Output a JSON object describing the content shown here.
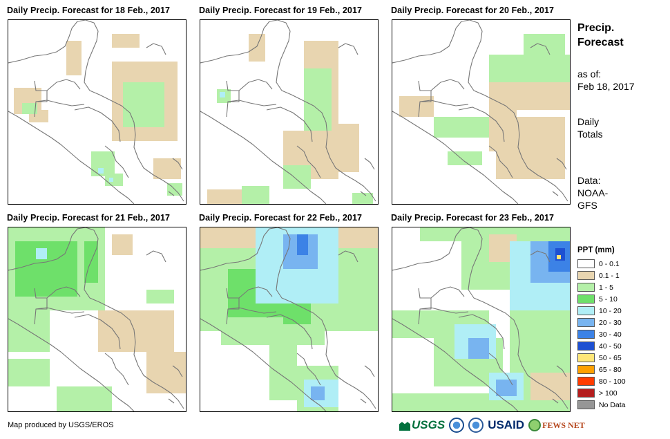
{
  "panels": [
    {
      "title": "Daily Precip. Forecast for 18 Feb., 2017"
    },
    {
      "title": "Daily Precip. Forecast for 19 Feb., 2017"
    },
    {
      "title": "Daily Precip. Forecast for 20 Feb., 2017"
    },
    {
      "title": "Daily Precip. Forecast for 21 Feb., 2017"
    },
    {
      "title": "Daily Precip. Forecast for 22 Feb., 2017"
    },
    {
      "title": "Daily Precip. Forecast for 23 Feb., 2017"
    }
  ],
  "side": {
    "title_line1": "Precip.",
    "title_line2": "Forecast",
    "asof_line1": "as of:",
    "asof_line2": "Feb 18, 2017",
    "totals_line1": "Daily",
    "totals_line2": "Totals",
    "source_line1": "Data:",
    "source_line2": "NOAA-",
    "source_line3": "GFS"
  },
  "legend": {
    "title": "PPT (mm)",
    "items": [
      {
        "label": "0 - 0.1",
        "color": "#ffffff"
      },
      {
        "label": "0.1 - 1",
        "color": "#e8d5b0"
      },
      {
        "label": "1 - 5",
        "color": "#b4f0a8"
      },
      {
        "label": "5 - 10",
        "color": "#6ee06a"
      },
      {
        "label": "10 - 20",
        "color": "#b0eef6"
      },
      {
        "label": "20 - 30",
        "color": "#78b4f0"
      },
      {
        "label": "30 - 40",
        "color": "#3c82e6"
      },
      {
        "label": "40 - 50",
        "color": "#1e50d2"
      },
      {
        "label": "50 - 65",
        "color": "#ffe678"
      },
      {
        "label": "65 - 80",
        "color": "#ffa000"
      },
      {
        "label": "80 - 100",
        "color": "#ff3c00"
      },
      {
        "label": "> 100",
        "color": "#b41e1e"
      },
      {
        "label": "No Data",
        "color": "#969696"
      }
    ]
  },
  "footer": {
    "credit": "Map produced by USGS/EROS",
    "logos": {
      "usgs": "USGS",
      "usaid": "USAID",
      "fews": "FEWS NET"
    }
  }
}
